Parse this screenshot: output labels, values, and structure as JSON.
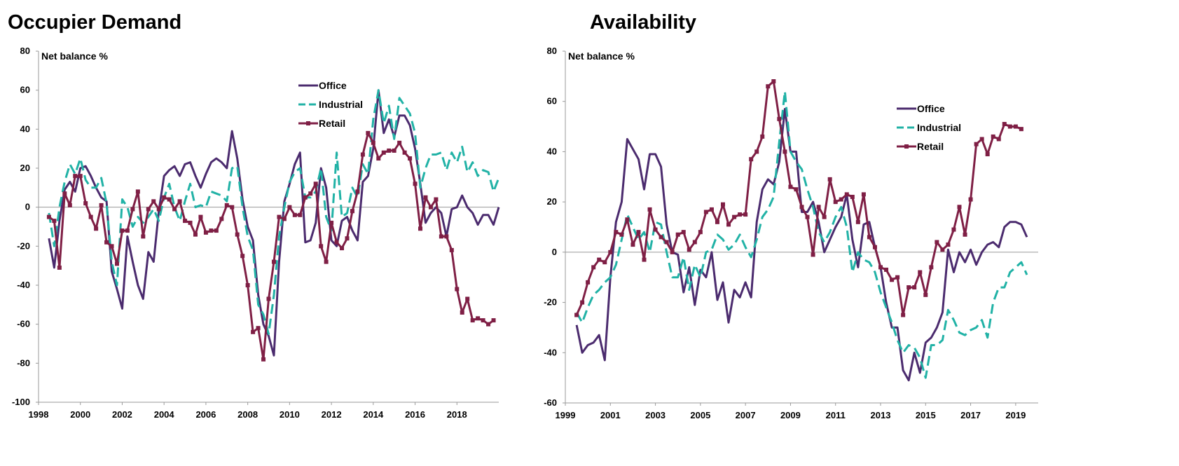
{
  "colors": {
    "office": "#4b2b6e",
    "industrial": "#21b2a6",
    "retail": "#7f1f45",
    "axis": "#9a9a9a"
  },
  "chart_data": [
    {
      "type": "line",
      "title": "Occupier Demand",
      "ylabel": "Net balance %",
      "ylim": [
        -100,
        80
      ],
      "yticks": [
        80,
        60,
        40,
        20,
        0,
        -20,
        -40,
        -60,
        -80,
        -100
      ],
      "xlim": [
        1998,
        2020
      ],
      "xticks": [
        1998,
        2000,
        2002,
        2004,
        2006,
        2008,
        2010,
        2012,
        2014,
        2016,
        2018
      ],
      "legend_position": "top-right",
      "series": [
        {
          "name": "Office",
          "style": "solid",
          "x_start": 1998.5,
          "step": 0.25,
          "values": [
            -16,
            -31,
            -7,
            9,
            13,
            8,
            20,
            21,
            16,
            10,
            5,
            3,
            -33,
            -42,
            -52,
            -15,
            -28,
            -40,
            -47,
            -23,
            -28,
            -2,
            16,
            19,
            21,
            16,
            22,
            23,
            16,
            10,
            17,
            23,
            25,
            23,
            20,
            39,
            25,
            4,
            -10,
            -17,
            -45,
            -60,
            -66,
            -76,
            -28,
            3,
            12,
            22,
            28,
            -18,
            -17,
            -8,
            20,
            10,
            -17,
            -20,
            -7,
            -5,
            -12,
            -17,
            13,
            16,
            30,
            60,
            38,
            45,
            36,
            47,
            47,
            42,
            30,
            12,
            -8,
            -3,
            0,
            -3,
            -15,
            -1,
            0,
            6,
            0,
            -3,
            -9,
            -4,
            -4,
            -9,
            0
          ]
        },
        {
          "name": "Industrial",
          "style": "dashed",
          "x_start": 1998.5,
          "step": 0.25,
          "values": [
            -3,
            -20,
            0,
            13,
            22,
            17,
            25,
            14,
            10,
            10,
            15,
            2,
            -28,
            -40,
            4,
            0,
            -10,
            -5,
            -8,
            -5,
            -1,
            -7,
            5,
            12,
            0,
            -7,
            3,
            12,
            0,
            1,
            0,
            8,
            7,
            6,
            3,
            20,
            21,
            0,
            -15,
            -22,
            -50,
            -55,
            -65,
            -45,
            -15,
            0,
            13,
            18,
            20,
            5,
            5,
            8,
            20,
            -5,
            -12,
            28,
            -5,
            -3,
            10,
            5,
            22,
            17,
            45,
            60,
            43,
            52,
            35,
            56,
            52,
            48,
            38,
            10,
            20,
            27,
            27,
            28,
            19,
            28,
            23,
            31,
            18,
            23,
            16,
            19,
            18,
            8,
            15
          ]
        },
        {
          "name": "Retail",
          "style": "marker",
          "x_start": 1998.5,
          "step": 0.25,
          "values": [
            -5,
            -7,
            -31,
            7,
            1,
            16,
            16,
            2,
            -5,
            -11,
            1,
            -18,
            -20,
            -29,
            -12,
            -12,
            -1,
            8,
            -15,
            -1,
            3,
            -1,
            5,
            4,
            -1,
            3,
            -7,
            -8,
            -14,
            -5,
            -13,
            -12,
            -12,
            -6,
            1,
            0,
            -14,
            -25,
            -40,
            -64,
            -62,
            -78,
            -47,
            -28,
            -5,
            -6,
            0,
            -4,
            -4,
            5,
            7,
            12,
            -20,
            -28,
            -8,
            -18,
            -21,
            -16,
            -2,
            8,
            27,
            38,
            33,
            25,
            28,
            29,
            29,
            33,
            28,
            25,
            12,
            -11,
            5,
            0,
            4,
            -15,
            -15,
            -22,
            -42,
            -54,
            -47,
            -58,
            -57,
            -58,
            -60,
            -58
          ]
        }
      ]
    },
    {
      "type": "line",
      "title": "Availability",
      "ylabel": "Net balance %",
      "ylim": [
        -60,
        80
      ],
      "yticks": [
        80,
        60,
        40,
        20,
        0,
        -20,
        -40,
        -60
      ],
      "xlim": [
        1999,
        2020
      ],
      "xticks": [
        1999,
        2001,
        2003,
        2005,
        2007,
        2009,
        2011,
        2013,
        2015,
        2017,
        2019
      ],
      "legend_position": "top-right",
      "series": [
        {
          "name": "Office",
          "style": "solid",
          "x_start": 1999.5,
          "step": 0.25,
          "values": [
            -29,
            -40,
            -37,
            -36,
            -33,
            -43,
            -10,
            12,
            20,
            45,
            41,
            37,
            25,
            39,
            39,
            34,
            11,
            0,
            -1,
            -16,
            -6,
            -21,
            -7,
            -10,
            0,
            -19,
            -12,
            -28,
            -15,
            -18,
            -12,
            -18,
            12,
            25,
            29,
            27,
            36,
            57,
            40,
            40,
            16,
            16,
            20,
            12,
            0,
            5,
            10,
            14,
            23,
            5,
            -6,
            11,
            12,
            2,
            -6,
            -20,
            -30,
            -30,
            -47,
            -51,
            -40,
            -48,
            -36,
            -34,
            -30,
            -24,
            1,
            -8,
            0,
            -4,
            1,
            -5,
            0,
            3,
            4,
            2,
            10,
            12,
            12,
            11,
            6
          ]
        },
        {
          "name": "Industrial",
          "style": "dashed",
          "x_start": 1999.5,
          "step": 0.25,
          "values": [
            -24,
            -28,
            -22,
            -17,
            -15,
            -12,
            -10,
            -5,
            5,
            15,
            10,
            5,
            8,
            0,
            12,
            11,
            0,
            -10,
            -10,
            -2,
            -15,
            -5,
            -10,
            0,
            1,
            7,
            5,
            1,
            3,
            7,
            2,
            -2,
            5,
            14,
            17,
            22,
            44,
            64,
            40,
            36,
            33,
            25,
            18,
            8,
            4,
            8,
            14,
            18,
            10,
            -8,
            0,
            -3,
            -4,
            -8,
            -16,
            -22,
            -28,
            -35,
            -40,
            -37,
            -38,
            -42,
            -50,
            -37,
            -37,
            -35,
            -23,
            -27,
            -32,
            -33,
            -31,
            -30,
            -27,
            -34,
            -20,
            -14,
            -14,
            -8,
            -6,
            -4,
            -9
          ]
        },
        {
          "name": "Retail",
          "style": "marker",
          "x_start": 1999.5,
          "step": 0.25,
          "values": [
            -25,
            -20,
            -12,
            -6,
            -3,
            -4,
            0,
            8,
            7,
            13,
            3,
            8,
            -3,
            17,
            9,
            6,
            4,
            0,
            7,
            8,
            1,
            4,
            8,
            16,
            17,
            12,
            19,
            11,
            14,
            15,
            15,
            37,
            40,
            46,
            66,
            68,
            53,
            40,
            26,
            25,
            18,
            14,
            -1,
            18,
            14,
            29,
            20,
            21,
            23,
            22,
            12,
            23,
            6,
            2,
            -6,
            -7,
            -11,
            -10,
            -25,
            -14,
            -14,
            -8,
            -17,
            -6,
            4,
            1,
            3,
            9,
            18,
            7,
            21,
            43,
            45,
            39,
            46,
            45,
            51,
            50,
            50,
            49
          ]
        }
      ]
    }
  ]
}
